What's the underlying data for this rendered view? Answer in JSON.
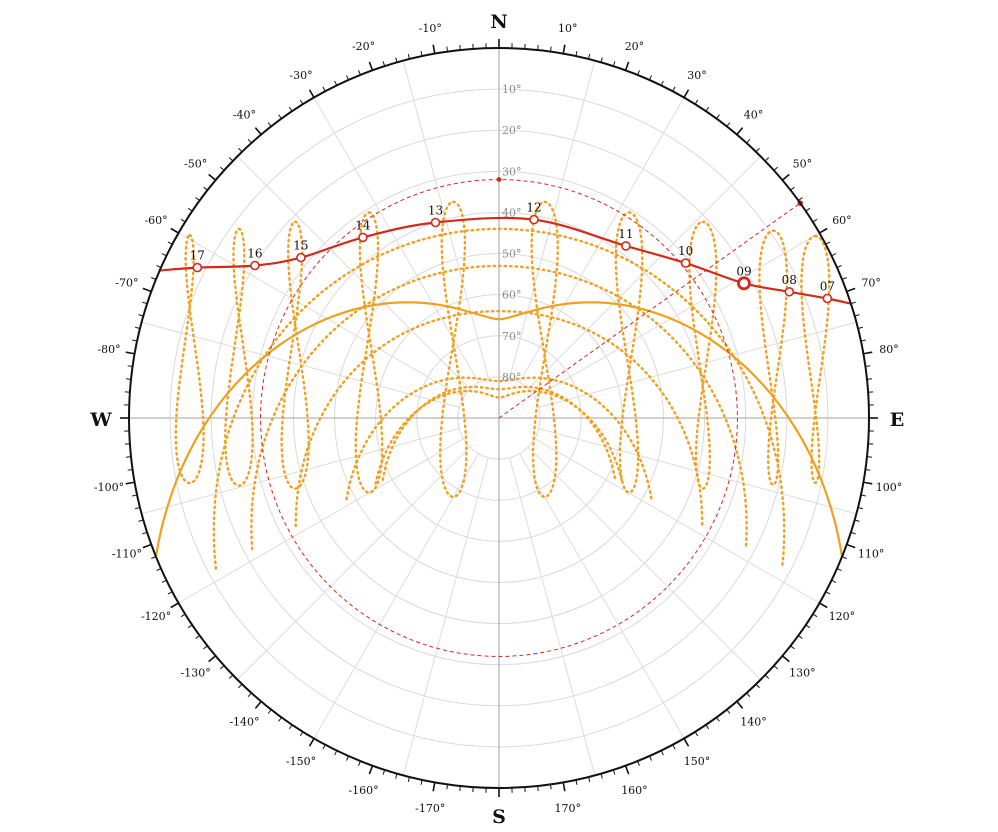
{
  "chart_data": {
    "type": "polar-sun-path",
    "cardinals": {
      "north": "N",
      "east": "E",
      "south": "S",
      "west": "W"
    },
    "azimuth_labels": [
      {
        "deg": 10,
        "text": "10°"
      },
      {
        "deg": 20,
        "text": "20°"
      },
      {
        "deg": 30,
        "text": "30°"
      },
      {
        "deg": 40,
        "text": "40°"
      },
      {
        "deg": 50,
        "text": "50°"
      },
      {
        "deg": 60,
        "text": "60°"
      },
      {
        "deg": 70,
        "text": "70°"
      },
      {
        "deg": 80,
        "text": "80°"
      },
      {
        "deg": 100,
        "text": "100°"
      },
      {
        "deg": 110,
        "text": "110°"
      },
      {
        "deg": 120,
        "text": "120°"
      },
      {
        "deg": 130,
        "text": "130°"
      },
      {
        "deg": 140,
        "text": "140°"
      },
      {
        "deg": 150,
        "text": "150°"
      },
      {
        "deg": 160,
        "text": "160°"
      },
      {
        "deg": 170,
        "text": "170°"
      },
      {
        "deg": -10,
        "text": "-10°"
      },
      {
        "deg": -20,
        "text": "-20°"
      },
      {
        "deg": -30,
        "text": "-30°"
      },
      {
        "deg": -40,
        "text": "-40°"
      },
      {
        "deg": -50,
        "text": "-50°"
      },
      {
        "deg": -60,
        "text": "-60°"
      },
      {
        "deg": -70,
        "text": "-70°"
      },
      {
        "deg": -80,
        "text": "-80°"
      },
      {
        "deg": -100,
        "text": "-100°"
      },
      {
        "deg": -110,
        "text": "-110°"
      },
      {
        "deg": -120,
        "text": "-120°"
      },
      {
        "deg": -130,
        "text": "-130°"
      },
      {
        "deg": -140,
        "text": "-140°"
      },
      {
        "deg": -150,
        "text": "-150°"
      },
      {
        "deg": -160,
        "text": "-160°"
      },
      {
        "deg": -170,
        "text": "-170°"
      }
    ],
    "altitude_labels": [
      {
        "alt": 10,
        "text": "10°"
      },
      {
        "alt": 20,
        "text": "20°"
      },
      {
        "alt": 30,
        "text": "30°"
      },
      {
        "alt": 40,
        "text": "40°"
      },
      {
        "alt": 50,
        "text": "50°"
      },
      {
        "alt": 60,
        "text": "60°"
      },
      {
        "alt": 70,
        "text": "70°"
      },
      {
        "alt": 80,
        "text": "80°"
      }
    ],
    "current_day_path": {
      "color": "#d42a1a",
      "points": [
        {
          "label": "07",
          "az": 70,
          "alt": 5
        },
        {
          "label": "08",
          "az": 66.5,
          "alt": 13
        },
        {
          "label": "09",
          "az": 61.2,
          "alt": 22,
          "current": true
        },
        {
          "label": "10",
          "az": 50.3,
          "alt": 31
        },
        {
          "label": "11",
          "az": 36.4,
          "alt": 38
        },
        {
          "label": "12",
          "az": 10,
          "alt": 41
        },
        {
          "label": "13",
          "az": -18,
          "alt": 40
        },
        {
          "label": "14",
          "az": -37,
          "alt": 35
        },
        {
          "label": "15",
          "az": -51,
          "alt": 28
        },
        {
          "label": "16",
          "az": -58,
          "alt": 20
        },
        {
          "label": "17",
          "az": -63.5,
          "alt": 8
        }
      ]
    },
    "current_sun": {
      "az": 61.2,
      "alt": 22
    },
    "sun_direction_marker_az": 54.5,
    "reference_circle_alt": 32,
    "winter_solstice_path": {
      "color": "#f0a020",
      "sunrise_az": -112,
      "sunset_az": 112,
      "noon_alt": 66
    },
    "analemma_color": "#f0a020",
    "dotted_day_arcs": [
      {
        "noon_alt": 44,
        "end_alt": 12
      },
      {
        "noon_alt": 53,
        "end_alt": 22
      },
      {
        "noon_alt": 64,
        "end_alt": 34
      },
      {
        "noon_alt": 81,
        "end_alt": 48
      },
      {
        "noon_alt": 85,
        "end_alt": 56
      },
      {
        "noon_alt": 83,
        "end_alt": 58
      }
    ],
    "grid": true
  }
}
